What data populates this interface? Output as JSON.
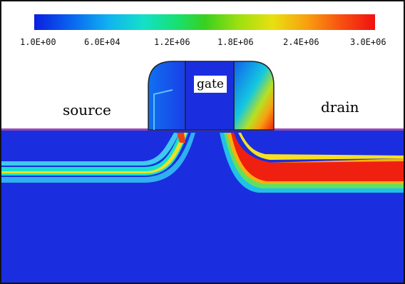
{
  "colorbar": {
    "tick_labels": [
      "1.0E+00",
      "6.0E+04",
      "1.2E+06",
      "1.8E+06",
      "2.4E+06",
      "3.0E+06"
    ],
    "colors": [
      "#0a1fe0",
      "#10b4f0",
      "#18e070",
      "#e8e010",
      "#f85010",
      "#f01010"
    ]
  },
  "labels": {
    "source": "source",
    "drain": "drain",
    "gate": "gate"
  }
}
